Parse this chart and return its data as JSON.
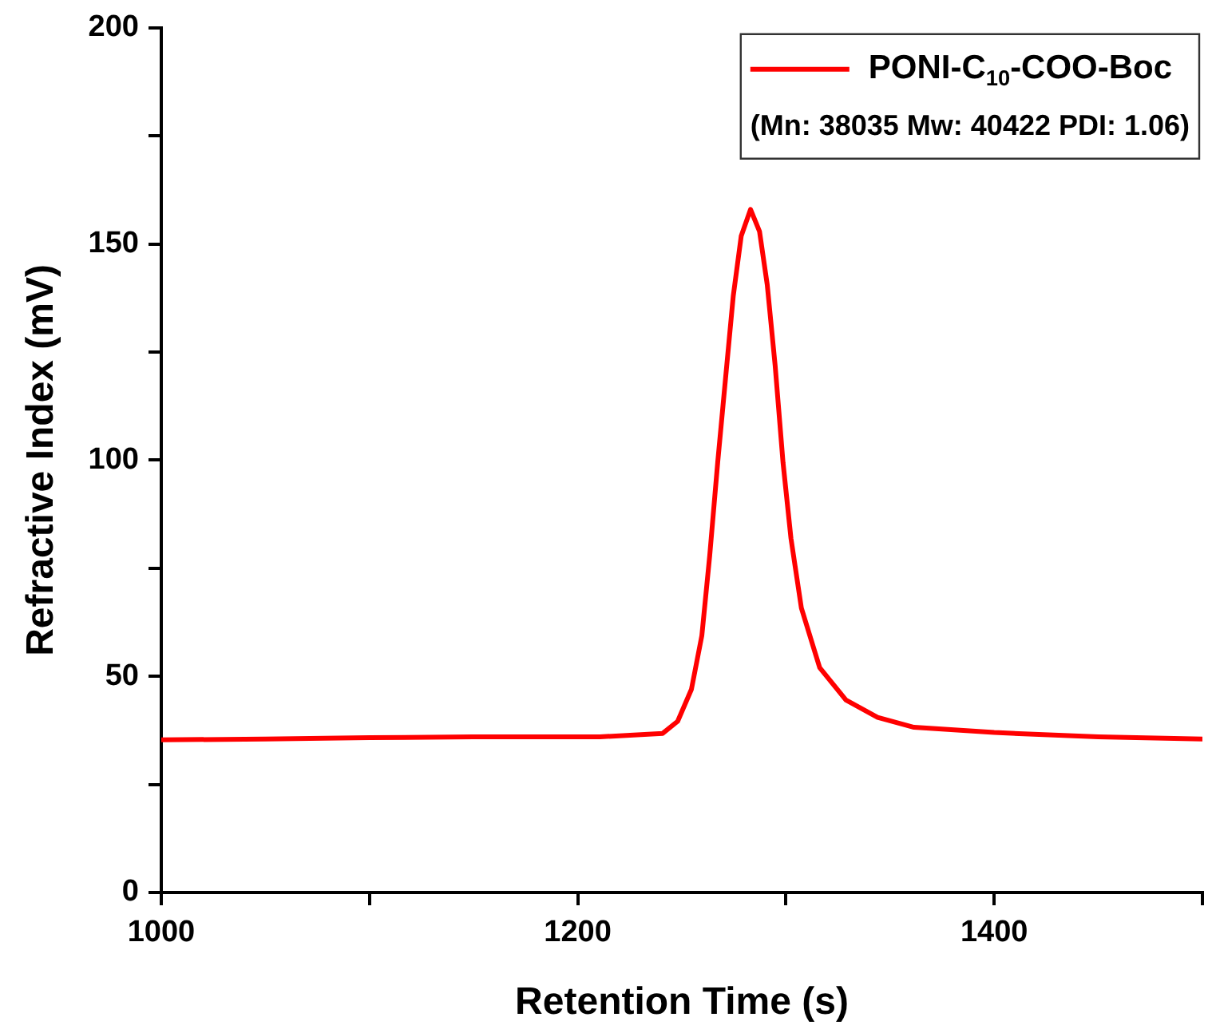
{
  "chart_data": {
    "type": "line",
    "xlabel": "Retention Time (s)",
    "ylabel": "Refractive Index (mV)",
    "xlim": [
      1000,
      1500
    ],
    "xticks": [
      1000,
      {
        "value": 1100,
        "label": null
      },
      1200,
      {
        "value": 1300,
        "label": null
      },
      1400,
      {
        "value": 1500,
        "label": null
      }
    ],
    "ylim": [
      0,
      200
    ],
    "yticks": [
      0,
      {
        "value": 25,
        "label": null
      },
      50,
      {
        "value": 75,
        "label": null
      },
      100,
      {
        "value": 125,
        "label": null
      },
      150,
      {
        "value": 175,
        "label": null
      },
      200
    ],
    "grid": false,
    "legend": "top right",
    "marker": "none",
    "line_style": "solid",
    "annotations": [
      "(Mn: 38035 Mw: 40422 PDI: 1.06)"
    ],
    "series": [
      {
        "name": "PONI-C$_{10}$-COO-Boc",
        "color": "#ff0000",
        "x": [
          1000,
          1050,
          1100,
          1150,
          1200,
          1210.6,
          1240.8,
          1248,
          1254.6,
          1259.6,
          1263.4,
          1267.2,
          1271,
          1274.7,
          1278.5,
          1283,
          1287.3,
          1291,
          1294.8,
          1298.6,
          1302.4,
          1307.4,
          1316.2,
          1328.8,
          1344,
          1361.5,
          1400,
          1450,
          1500
        ],
        "values": [
          35.3,
          35.5,
          35.8,
          36,
          36,
          36,
          36.8,
          39.6,
          47,
          59.4,
          78,
          99.4,
          119,
          138,
          151.8,
          158,
          152.9,
          140.6,
          121.9,
          99.4,
          81.9,
          65.8,
          52,
          44.5,
          40.5,
          38.2,
          37,
          36,
          35.5
        ]
      }
    ]
  }
}
